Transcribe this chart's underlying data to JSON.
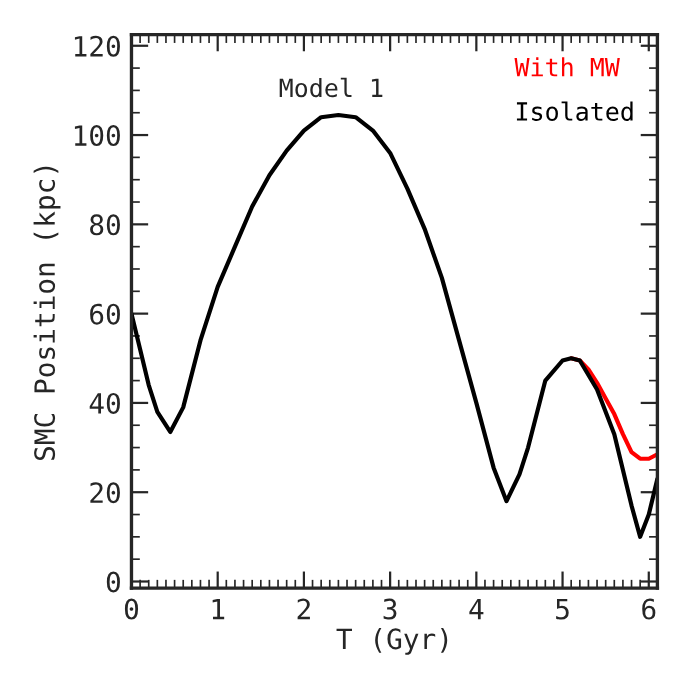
{
  "chart_data": {
    "type": "line",
    "xlabel": "T (Gyr)",
    "ylabel": "SMC Position (kpc)",
    "annotations": [
      "Model 1"
    ],
    "series": [
      {
        "name": "With MW",
        "color": "#ff0000",
        "x": [
          5.1,
          5.2,
          5.3,
          5.4,
          5.5,
          5.6,
          5.7,
          5.8,
          5.9,
          6.0,
          6.1
        ],
        "values": [
          50,
          49.5,
          47.5,
          44.5,
          41,
          37.5,
          33,
          29,
          27.5,
          27.5,
          28.5
        ]
      },
      {
        "name": "Isolated",
        "color": "#000000",
        "x": [
          0,
          0.1,
          0.2,
          0.3,
          0.45,
          0.6,
          0.8,
          1.0,
          1.2,
          1.4,
          1.6,
          1.8,
          2.0,
          2.2,
          2.4,
          2.6,
          2.8,
          3.0,
          3.2,
          3.4,
          3.6,
          3.8,
          4.0,
          4.2,
          4.35,
          4.5,
          4.6,
          4.8,
          5.0,
          5.1,
          5.2,
          5.4,
          5.6,
          5.8,
          5.9,
          6.0,
          6.1
        ],
        "values": [
          60,
          52,
          44,
          38,
          33.5,
          39,
          54,
          66,
          75,
          84,
          91,
          96.5,
          101,
          104,
          104.5,
          104,
          101,
          96,
          88,
          79,
          68,
          54,
          40,
          25.5,
          18,
          24,
          30,
          45,
          49.5,
          50,
          49.5,
          43,
          33,
          17,
          10,
          15,
          23
        ]
      }
    ],
    "xlim": [
      0,
      6.1
    ],
    "ylim": [
      -1.5,
      122.5
    ],
    "xticks": [
      0,
      1,
      2,
      3,
      4,
      5,
      6
    ],
    "yticks": [
      0,
      20,
      40,
      60,
      80,
      100,
      120
    ],
    "grid": false,
    "legend": "top right",
    "marker": "none",
    "line_style": "solid"
  }
}
